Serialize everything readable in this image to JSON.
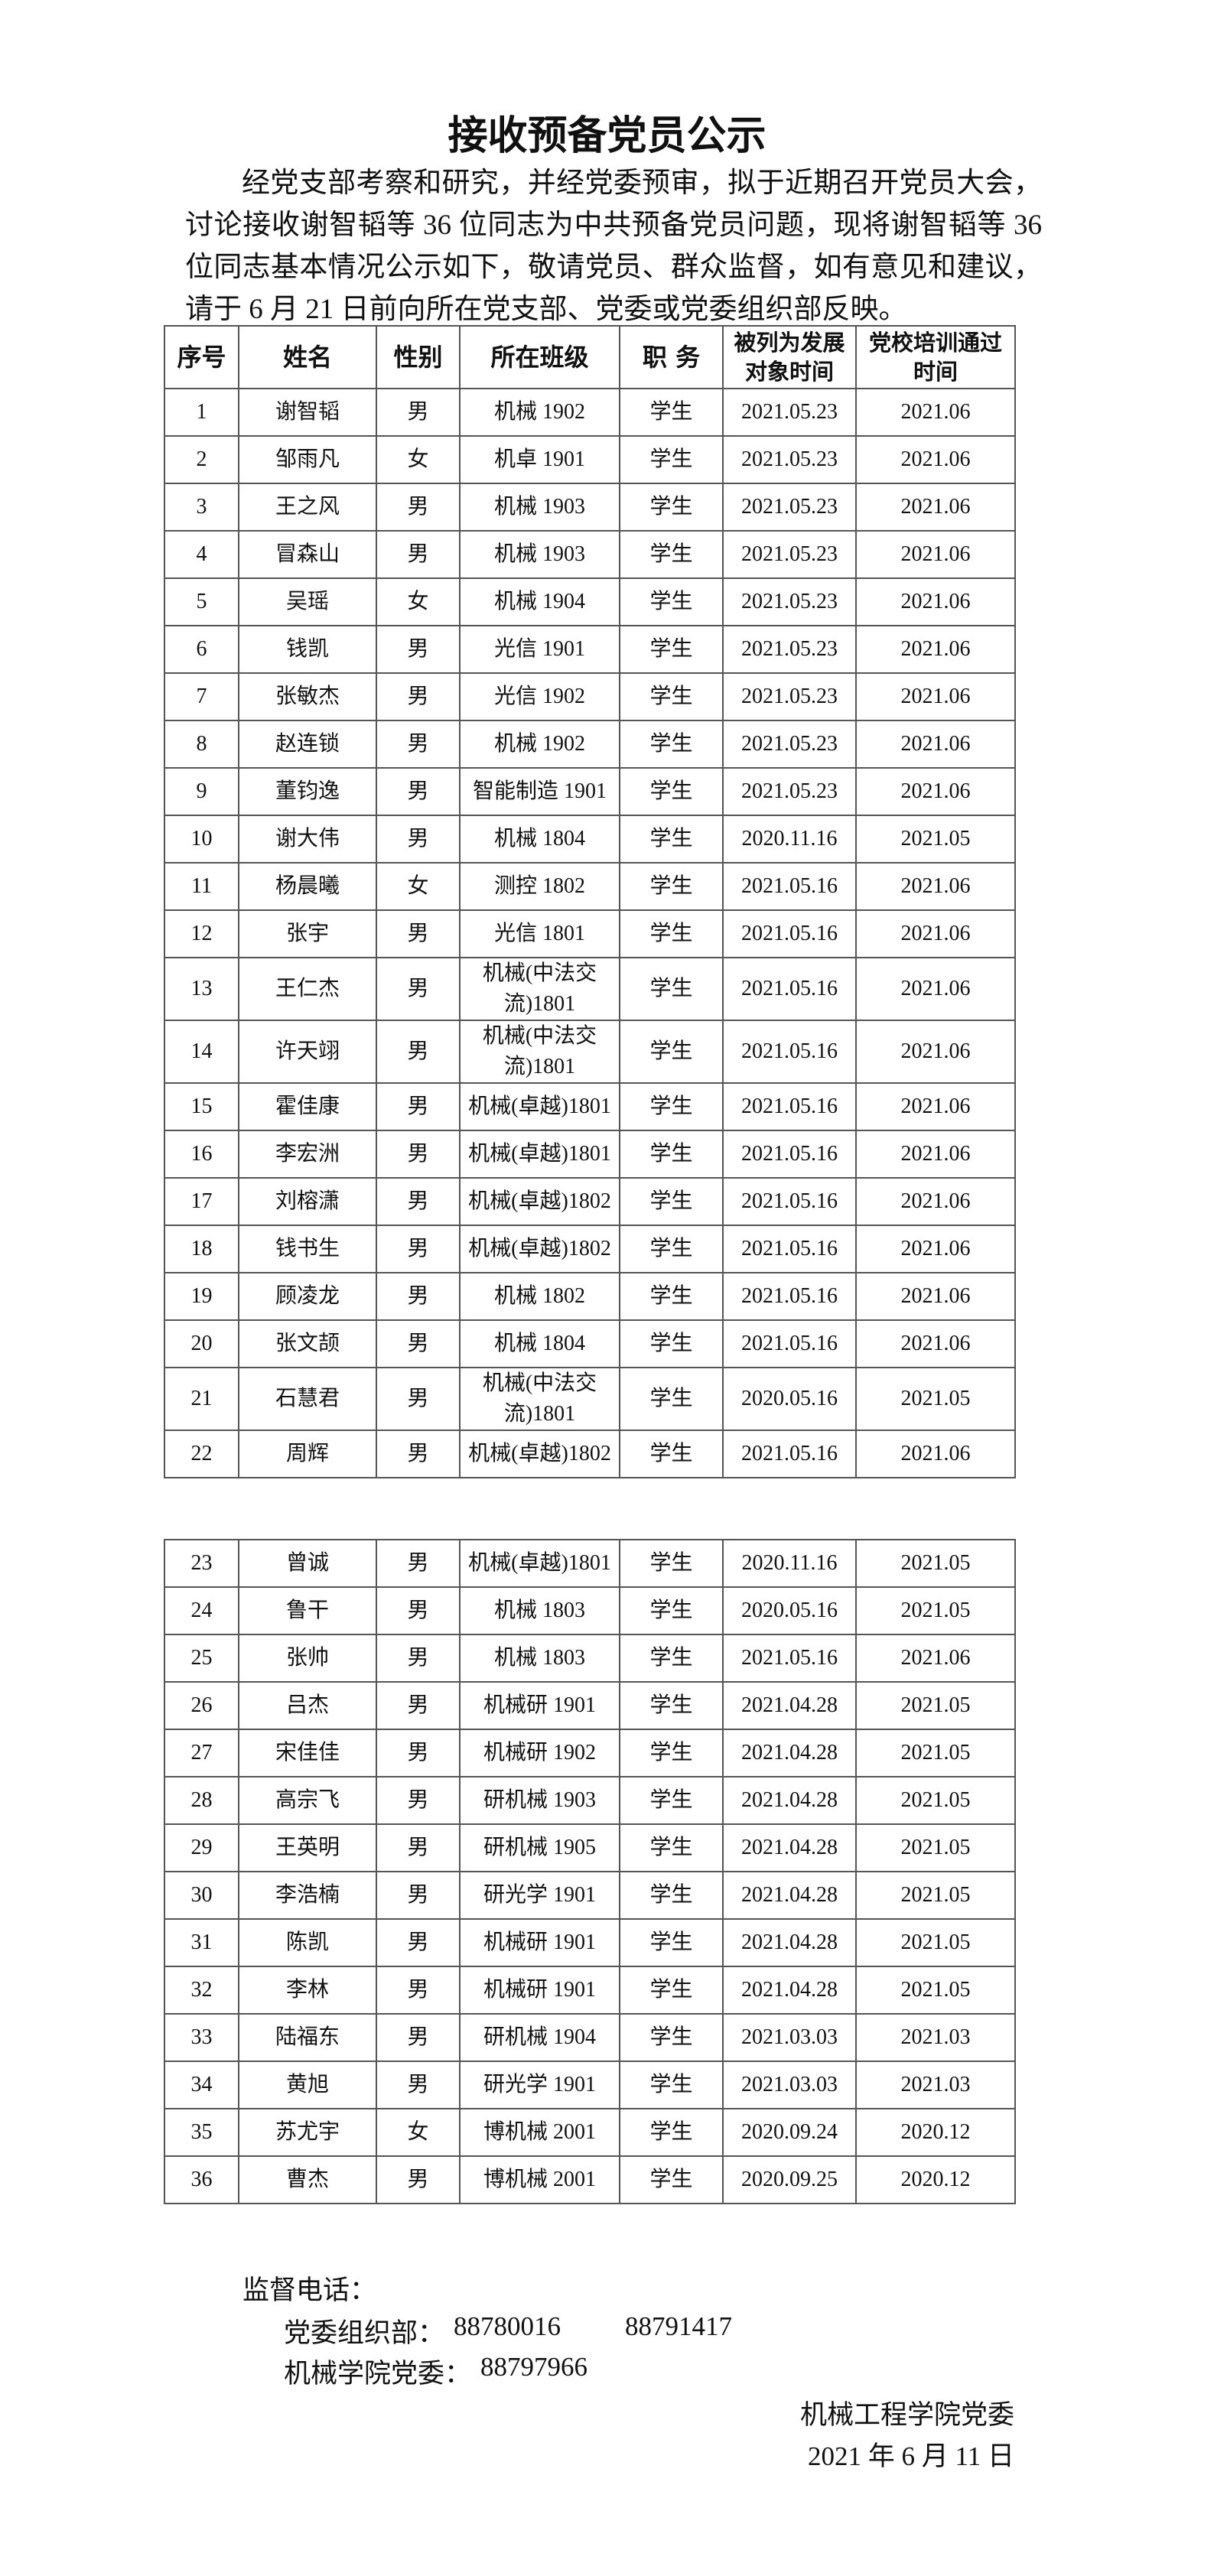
{
  "title": "接收预备党员公示",
  "intro": "经党支部考察和研究，并经党委预审，拟于近期召开党员大会，讨论接收谢智韬等 36 位同志为中共预备党员问题，现将谢智韬等 36 位同志基本情况公示如下，敬请党员、群众监督，如有意见和建议，请于 6 月 21 日前向所在党支部、党委或党委组织部反映。",
  "tables": [
    {
      "header": [
        "序号",
        "姓名",
        "性别",
        "所在班级",
        "职 务",
        "被列为发展对象时间",
        "党校培训通过时间"
      ],
      "rows": [
        [
          "1",
          "谢智韬",
          "男",
          "机械 1902",
          "学生",
          "2021.05.23",
          "2021.06"
        ],
        [
          "2",
          "邹雨凡",
          "女",
          "机卓 1901",
          "学生",
          "2021.05.23",
          "2021.06"
        ],
        [
          "3",
          "王之风",
          "男",
          "机械 1903",
          "学生",
          "2021.05.23",
          "2021.06"
        ],
        [
          "4",
          "冒森山",
          "男",
          "机械 1903",
          "学生",
          "2021.05.23",
          "2021.06"
        ],
        [
          "5",
          "吴瑶",
          "女",
          "机械 1904",
          "学生",
          "2021.05.23",
          "2021.06"
        ],
        [
          "6",
          "钱凯",
          "男",
          "光信 1901",
          "学生",
          "2021.05.23",
          "2021.06"
        ],
        [
          "7",
          "张敏杰",
          "男",
          "光信 1902",
          "学生",
          "2021.05.23",
          "2021.06"
        ],
        [
          "8",
          "赵连锁",
          "男",
          "机械 1902",
          "学生",
          "2021.05.23",
          "2021.06"
        ],
        [
          "9",
          "董钧逸",
          "男",
          "智能制造 1901",
          "学生",
          "2021.05.23",
          "2021.06"
        ],
        [
          "10",
          "谢大伟",
          "男",
          "机械 1804",
          "学生",
          "2020.11.16",
          "2021.05"
        ],
        [
          "11",
          "杨晨曦",
          "女",
          "测控 1802",
          "学生",
          "2021.05.16",
          "2021.06"
        ],
        [
          "12",
          "张宇",
          "男",
          "光信 1801",
          "学生",
          "2021.05.16",
          "2021.06"
        ],
        [
          "13",
          "王仁杰",
          "男",
          "机械(中法交流)1801",
          "学生",
          "2021.05.16",
          "2021.06"
        ],
        [
          "14",
          "许天翊",
          "男",
          "机械(中法交流)1801",
          "学生",
          "2021.05.16",
          "2021.06"
        ],
        [
          "15",
          "霍佳康",
          "男",
          "机械(卓越)1801",
          "学生",
          "2021.05.16",
          "2021.06"
        ],
        [
          "16",
          "李宏洲",
          "男",
          "机械(卓越)1801",
          "学生",
          "2021.05.16",
          "2021.06"
        ],
        [
          "17",
          "刘榕潇",
          "男",
          "机械(卓越)1802",
          "学生",
          "2021.05.16",
          "2021.06"
        ],
        [
          "18",
          "钱书生",
          "男",
          "机械(卓越)1802",
          "学生",
          "2021.05.16",
          "2021.06"
        ],
        [
          "19",
          "顾凌龙",
          "男",
          "机械 1802",
          "学生",
          "2021.05.16",
          "2021.06"
        ],
        [
          "20",
          "张文颉",
          "男",
          "机械 1804",
          "学生",
          "2021.05.16",
          "2021.06"
        ],
        [
          "21",
          "石慧君",
          "男",
          "机械(中法交流)1801",
          "学生",
          "2020.05.16",
          "2021.05"
        ],
        [
          "22",
          "周辉",
          "男",
          "机械(卓越)1802",
          "学生",
          "2021.05.16",
          "2021.06"
        ]
      ]
    },
    {
      "rows": [
        [
          "23",
          "曾诚",
          "男",
          "机械(卓越)1801",
          "学生",
          "2020.11.16",
          "2021.05"
        ],
        [
          "24",
          "鲁干",
          "男",
          "机械 1803",
          "学生",
          "2020.05.16",
          "2021.05"
        ],
        [
          "25",
          "张帅",
          "男",
          "机械 1803",
          "学生",
          "2021.05.16",
          "2021.06"
        ],
        [
          "26",
          "吕杰",
          "男",
          "机械研 1901",
          "学生",
          "2021.04.28",
          "2021.05"
        ],
        [
          "27",
          "宋佳佳",
          "男",
          "机械研 1902",
          "学生",
          "2021.04.28",
          "2021.05"
        ],
        [
          "28",
          "高宗飞",
          "男",
          "研机械 1903",
          "学生",
          "2021.04.28",
          "2021.05"
        ],
        [
          "29",
          "王英明",
          "男",
          "研机械 1905",
          "学生",
          "2021.04.28",
          "2021.05"
        ],
        [
          "30",
          "李浩楠",
          "男",
          "研光学 1901",
          "学生",
          "2021.04.28",
          "2021.05"
        ],
        [
          "31",
          "陈凯",
          "男",
          "机械研 1901",
          "学生",
          "2021.04.28",
          "2021.05"
        ],
        [
          "32",
          "李林",
          "男",
          "机械研 1901",
          "学生",
          "2021.04.28",
          "2021.05"
        ],
        [
          "33",
          "陆福东",
          "男",
          "研机械 1904",
          "学生",
          "2021.03.03",
          "2021.03"
        ],
        [
          "34",
          "黄旭",
          "男",
          "研光学 1901",
          "学生",
          "2021.03.03",
          "2021.03"
        ],
        [
          "35",
          "苏尤宇",
          "女",
          "博机械 2001",
          "学生",
          "2020.09.24",
          "2020.12"
        ],
        [
          "36",
          "曹杰",
          "男",
          "博机械 2001",
          "学生",
          "2020.09.25",
          "2020.12"
        ]
      ]
    }
  ],
  "footer": {
    "supervision_label": "监督电话：",
    "org_dept_label": "党委组织部：",
    "org_dept_phone_1": "88780016",
    "org_dept_phone_2": "88791417",
    "college_label": "机械学院党委：",
    "college_phone": "88797966",
    "signature": "机械工程学院党委",
    "date": "2021 年 6 月 11 日"
  }
}
